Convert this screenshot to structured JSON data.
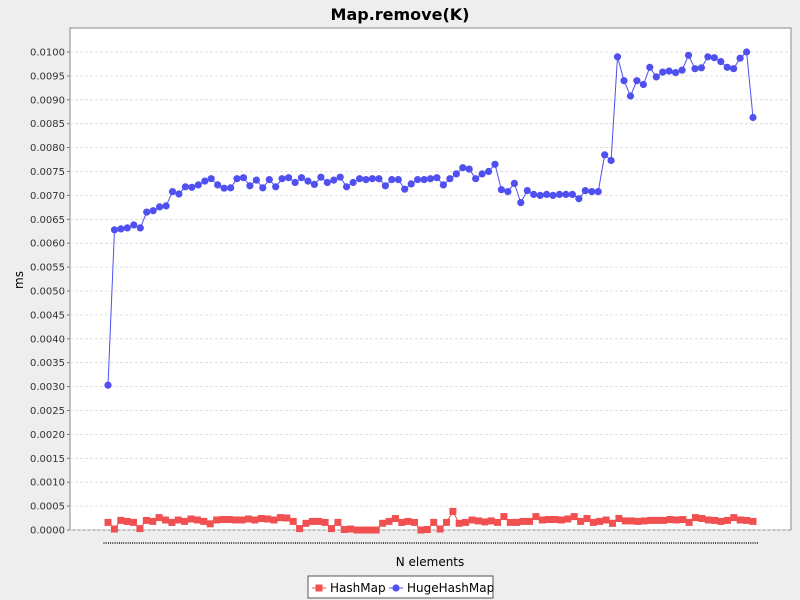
{
  "chart_data": {
    "type": "line",
    "title": "Map.remove(K)",
    "xlabel": "N elements",
    "ylabel": "ms",
    "ylim": [
      0,
      0.0105
    ],
    "yticks": [
      "0.0000",
      "0.0005",
      "0.0010",
      "0.0015",
      "0.0020",
      "0.0025",
      "0.0030",
      "0.0035",
      "0.0040",
      "0.0045",
      "0.0050",
      "0.0055",
      "0.0060",
      "0.0065",
      "0.0070",
      "0.0075",
      "0.0080",
      "0.0085",
      "0.0090",
      "0.0095",
      "0.0100"
    ],
    "grid": true,
    "legend_position": "bottom-center",
    "series": [
      {
        "name": "HashMap",
        "color": "#f05050",
        "marker": "square",
        "values": [
          0.00016,
          2e-05,
          0.0002,
          0.00018,
          0.00016,
          3e-05,
          0.0002,
          0.00018,
          0.00026,
          0.00021,
          0.00016,
          0.00021,
          0.00018,
          0.00023,
          0.00021,
          0.00018,
          0.00013,
          0.00021,
          0.00022,
          0.00022,
          0.00021,
          0.00021,
          0.00023,
          0.00021,
          0.00024,
          0.00023,
          0.00021,
          0.00026,
          0.00025,
          0.00018,
          3e-05,
          0.00014,
          0.00018,
          0.00018,
          0.00016,
          3e-05,
          0.00016,
          1e-05,
          2e-05,
          0.0,
          0.0,
          0.0,
          0.0,
          0.00014,
          0.00018,
          0.00024,
          0.00016,
          0.00018,
          0.00016,
          0.0,
          1e-05,
          0.00016,
          2e-05,
          0.00016,
          0.00039,
          0.00014,
          0.00016,
          0.00021,
          0.00019,
          0.00017,
          0.00019,
          0.00016,
          0.00028,
          0.00016,
          0.00016,
          0.00018,
          0.00018,
          0.00028,
          0.00021,
          0.00022,
          0.00022,
          0.00021,
          0.00023,
          0.00028,
          0.00018,
          0.00024,
          0.00016,
          0.00018,
          0.00021,
          0.00014,
          0.00024,
          0.00019,
          0.00019,
          0.00018,
          0.00019,
          0.0002,
          0.0002,
          0.0002,
          0.00022,
          0.00021,
          0.00022,
          0.00016,
          0.00026,
          0.00024,
          0.00021,
          0.0002,
          0.00018,
          0.0002,
          0.00026,
          0.00021,
          0.0002,
          0.00018
        ]
      },
      {
        "name": "HugeHashMap",
        "color": "#5050f0",
        "marker": "circle",
        "values": [
          0.00303,
          0.00628,
          0.0063,
          0.00632,
          0.00638,
          0.00632,
          0.00665,
          0.00668,
          0.00676,
          0.00678,
          0.00708,
          0.00703,
          0.00718,
          0.00717,
          0.00722,
          0.0073,
          0.00735,
          0.00722,
          0.00715,
          0.00716,
          0.00735,
          0.00737,
          0.0072,
          0.00732,
          0.00716,
          0.00733,
          0.00718,
          0.00735,
          0.00737,
          0.00727,
          0.00737,
          0.0073,
          0.00723,
          0.00738,
          0.00727,
          0.00732,
          0.00738,
          0.00718,
          0.00727,
          0.00735,
          0.00733,
          0.00735,
          0.00735,
          0.0072,
          0.00733,
          0.00733,
          0.00713,
          0.00724,
          0.00733,
          0.00733,
          0.00735,
          0.00737,
          0.00722,
          0.00735,
          0.00745,
          0.00758,
          0.00755,
          0.00735,
          0.00745,
          0.0075,
          0.00765,
          0.00712,
          0.00708,
          0.00725,
          0.00685,
          0.0071,
          0.00702,
          0.007,
          0.00702,
          0.007,
          0.00702,
          0.00702,
          0.00702,
          0.00693,
          0.0071,
          0.00708,
          0.00708,
          0.00785,
          0.00773,
          0.0099,
          0.0094,
          0.00908,
          0.0094,
          0.00932,
          0.00968,
          0.00948,
          0.00958,
          0.0096,
          0.00957,
          0.00962,
          0.00993,
          0.00965,
          0.00967,
          0.0099,
          0.00988,
          0.0098,
          0.00968,
          0.00965,
          0.00987,
          0.01,
          0.00863
        ]
      }
    ]
  }
}
